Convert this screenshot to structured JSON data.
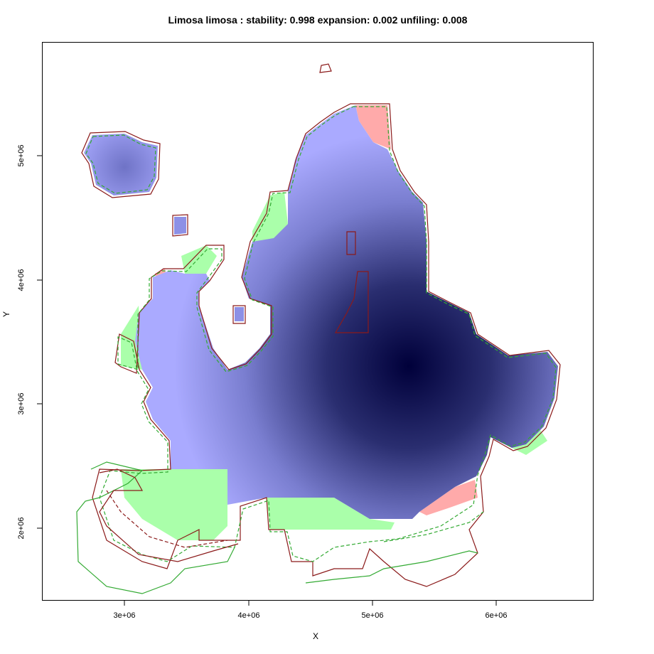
{
  "title": "Limosa limosa : stability: 0.998 expansion: 0.002 unfiling: 0.008",
  "axes": {
    "xlabel": "X",
    "ylabel": "Y",
    "xticks": [
      "3e+06",
      "4e+06",
      "5e+06",
      "6e+06"
    ],
    "yticks": [
      "2e+06",
      "3e+06",
      "4e+06",
      "5e+06"
    ]
  },
  "colors": {
    "stable_light": "#aaaaff",
    "stable_dark": "#00003a",
    "expansion": "#aaffaa",
    "unfilling": "#ffaaaa",
    "outline_current": "#8b1a1a",
    "outline_future": "#33aa33"
  }
}
